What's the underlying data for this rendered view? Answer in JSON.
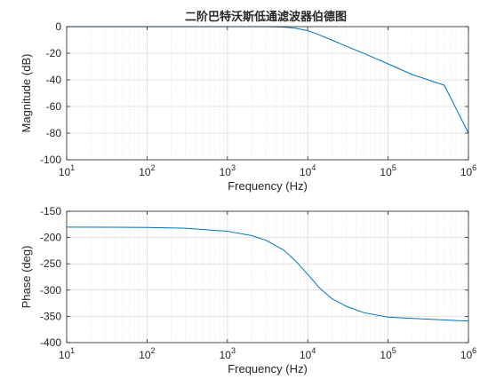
{
  "figure": {
    "title": "二阶巴特沃斯低通滤波器伯德图"
  },
  "colors": {
    "line": "#0072BD",
    "axis": "#262626",
    "grid_major": "#dcdcdc",
    "grid_minor": "#ebebeb"
  },
  "chart_data": [
    {
      "type": "line",
      "title": "二阶巴特沃斯低通滤波器伯德图",
      "xlabel": "Frequency (Hz)",
      "ylabel": "Magnitude (dB)",
      "xscale": "log",
      "xlim": [
        10,
        1000000
      ],
      "ylim": [
        -100,
        0
      ],
      "grid": true,
      "xticks": [
        10,
        100,
        1000,
        10000,
        100000,
        1000000
      ],
      "xtick_labels": [
        {
          "base": "10",
          "exp": "1"
        },
        {
          "base": "10",
          "exp": "2"
        },
        {
          "base": "10",
          "exp": "3"
        },
        {
          "base": "10",
          "exp": "4"
        },
        {
          "base": "10",
          "exp": "5"
        },
        {
          "base": "10",
          "exp": "6"
        }
      ],
      "yticks": [
        0,
        -20,
        -40,
        -60,
        -80,
        -100
      ],
      "ytick_labels": [
        "0",
        "-20",
        "-40",
        "-60",
        "-80",
        "-100"
      ],
      "series": [
        {
          "x": [
            10,
            100,
            1000,
            3000,
            5000,
            7000,
            10000,
            14000,
            20000,
            30000,
            50000,
            100000,
            200000,
            500000,
            1000000
          ],
          "y": [
            0,
            0,
            0,
            -0.03,
            -0.3,
            -1.2,
            -3,
            -6.3,
            -10.1,
            -14.6,
            -20.1,
            -28,
            -36,
            -44,
            -80
          ]
        }
      ]
    },
    {
      "type": "line",
      "title": "",
      "xlabel": "Frequency (Hz)",
      "ylabel": "Phase (deg)",
      "xscale": "log",
      "xlim": [
        10,
        1000000
      ],
      "ylim": [
        -400,
        -150
      ],
      "grid": true,
      "xticks": [
        10,
        100,
        1000,
        10000,
        100000,
        1000000
      ],
      "xtick_labels": [
        {
          "base": "10",
          "exp": "1"
        },
        {
          "base": "10",
          "exp": "2"
        },
        {
          "base": "10",
          "exp": "3"
        },
        {
          "base": "10",
          "exp": "4"
        },
        {
          "base": "10",
          "exp": "5"
        },
        {
          "base": "10",
          "exp": "6"
        }
      ],
      "yticks": [
        -150,
        -200,
        -250,
        -300,
        -350,
        -400
      ],
      "ytick_labels": [
        "-150",
        "-200",
        "-250",
        "-300",
        "-350",
        "-400"
      ],
      "series": [
        {
          "x": [
            10,
            100,
            300,
            1000,
            2000,
            3000,
            5000,
            7000,
            10000,
            14000,
            20000,
            30000,
            50000,
            100000,
            300000,
            1000000
          ],
          "y": [
            -180.1,
            -180.8,
            -182.4,
            -188.1,
            -196.3,
            -205,
            -223.8,
            -243.9,
            -270,
            -296,
            -316.3,
            -330.7,
            -343.1,
            -351.5,
            -355.3,
            -358.9
          ]
        }
      ]
    }
  ]
}
